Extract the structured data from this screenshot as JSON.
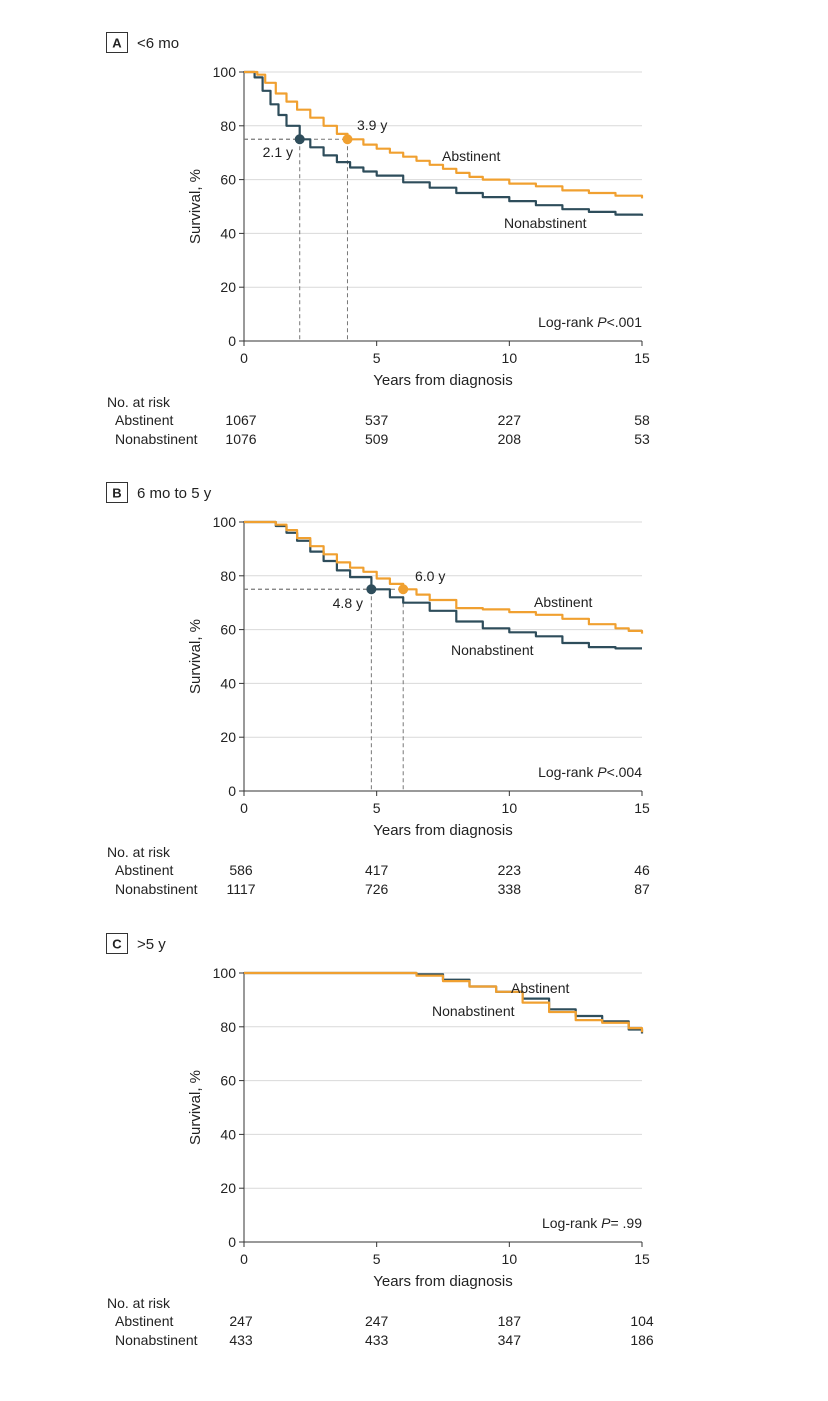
{
  "chart_data": [
    {
      "type": "line",
      "panel": "A",
      "title": "<6 mo",
      "xlabel": "Years from diagnosis",
      "ylabel": "Survival, %",
      "xlim": [
        0,
        15
      ],
      "ylim": [
        0,
        100
      ],
      "x_ticks": [
        "0",
        "5",
        "10",
        "15"
      ],
      "y_ticks": [
        "0",
        "20",
        "40",
        "60",
        "80",
        "100"
      ],
      "grid": true,
      "colors": {
        "Abstinent": "#F0A030",
        "Nonabstinent": "#2E4D5B"
      },
      "series": [
        {
          "name": "Abstinent",
          "x": [
            0,
            0.5,
            0.8,
            1.2,
            1.6,
            2,
            2.5,
            3,
            3.5,
            3.9,
            4.5,
            5,
            5.5,
            6,
            6.5,
            7,
            7.5,
            8,
            8.5,
            9,
            10,
            11,
            12,
            13,
            14,
            15
          ],
          "y": [
            100,
            99,
            96,
            92,
            89,
            86,
            83,
            80,
            77,
            75,
            73,
            71.5,
            70,
            68.5,
            67,
            65.5,
            64,
            62.5,
            61,
            60,
            58.5,
            57.5,
            56,
            55,
            54,
            53
          ]
        },
        {
          "name": "Nonabstinent",
          "x": [
            0,
            0.4,
            0.7,
            1,
            1.3,
            1.6,
            2.1,
            2.5,
            3,
            3.5,
            4,
            4.5,
            5,
            6,
            7,
            8,
            9,
            10,
            11,
            12,
            13,
            14,
            15
          ],
          "y": [
            100,
            98,
            93,
            88,
            84,
            80,
            75,
            72,
            69,
            66.5,
            64.5,
            63,
            61.5,
            59,
            57,
            55,
            53.5,
            52,
            50.5,
            49,
            48,
            47,
            46.5
          ]
        }
      ],
      "annotations": [
        {
          "label": "3.9 y",
          "x": 3.9,
          "y": 75,
          "series": "Abstinent"
        },
        {
          "label": "2.1 y",
          "x": 2.1,
          "y": 75,
          "series": "Nonabstinent"
        }
      ],
      "curve_labels": {
        "abstinent": "Abstinent",
        "nonabstinent": "Nonabstinent"
      },
      "logrank_prefix": "Log-rank ",
      "logrank_p": "P",
      "logrank_value": "<.001",
      "risk_table": {
        "header": "No. at risk",
        "rows": [
          {
            "label": "Abstinent",
            "values": [
              "1067",
              "537",
              "227",
              "58"
            ]
          },
          {
            "label": "Nonabstinent",
            "values": [
              "1076",
              "509",
              "208",
              "53"
            ]
          }
        ]
      }
    },
    {
      "type": "line",
      "panel": "B",
      "title": "6 mo to 5 y",
      "xlabel": "Years from diagnosis",
      "ylabel": "Survival, %",
      "xlim": [
        0,
        15
      ],
      "ylim": [
        0,
        100
      ],
      "x_ticks": [
        "0",
        "5",
        "10",
        "15"
      ],
      "y_ticks": [
        "0",
        "20",
        "40",
        "60",
        "80",
        "100"
      ],
      "grid": true,
      "colors": {
        "Abstinent": "#F0A030",
        "Nonabstinent": "#2E4D5B"
      },
      "series": [
        {
          "name": "Abstinent",
          "x": [
            0,
            0.8,
            1.2,
            1.6,
            2,
            2.5,
            3,
            3.5,
            4,
            4.5,
            5,
            5.5,
            6,
            6.5,
            7,
            8,
            9,
            10,
            11,
            12,
            13,
            14,
            14.5,
            15
          ],
          "y": [
            100,
            100,
            99,
            97,
            94,
            91,
            88,
            85,
            83,
            81.5,
            79,
            77,
            75,
            73,
            71,
            68,
            67.5,
            66.5,
            65.5,
            64,
            62,
            60.5,
            59.5,
            58.5
          ]
        },
        {
          "name": "Nonabstinent",
          "x": [
            0,
            0.8,
            1.2,
            1.6,
            2,
            2.5,
            3,
            3.5,
            4,
            4.8,
            5.5,
            6,
            7,
            8,
            9,
            10,
            11,
            12,
            13,
            14,
            15
          ],
          "y": [
            100,
            100,
            98.5,
            96,
            93,
            89,
            85.5,
            82,
            79.5,
            75,
            72,
            70,
            67,
            63,
            60.5,
            59,
            57.5,
            55,
            53.5,
            53,
            53
          ]
        }
      ],
      "annotations": [
        {
          "label": "6.0 y",
          "x": 6.0,
          "y": 75,
          "series": "Abstinent"
        },
        {
          "label": "4.8 y",
          "x": 4.8,
          "y": 75,
          "series": "Nonabstinent"
        }
      ],
      "curve_labels": {
        "abstinent": "Abstinent",
        "nonabstinent": "Nonabstinent"
      },
      "logrank_prefix": "Log-rank ",
      "logrank_p": "P",
      "logrank_value": "<.004",
      "risk_table": {
        "header": "No. at risk",
        "rows": [
          {
            "label": "Abstinent",
            "values": [
              "586",
              "417",
              "223",
              "46"
            ]
          },
          {
            "label": "Nonabstinent",
            "values": [
              "1117",
              "726",
              "338",
              "87"
            ]
          }
        ]
      }
    },
    {
      "type": "line",
      "panel": "C",
      "title": ">5 y",
      "xlabel": "Years from diagnosis",
      "ylabel": "Survival, %",
      "xlim": [
        0,
        15
      ],
      "ylim": [
        0,
        100
      ],
      "x_ticks": [
        "0",
        "5",
        "10",
        "15"
      ],
      "y_ticks": [
        "0",
        "20",
        "40",
        "60",
        "80",
        "100"
      ],
      "grid": true,
      "colors": {
        "Abstinent": "#F0A030",
        "Nonabstinent": "#2E4D5B"
      },
      "series": [
        {
          "name": "Abstinent",
          "x": [
            0,
            5.7,
            6.5,
            7.5,
            8.5,
            9.5,
            10.5,
            11.5,
            12.5,
            13.5,
            14.5,
            15
          ],
          "y": [
            100,
            100,
            99,
            97,
            95,
            93,
            89,
            85.5,
            82.5,
            81.5,
            79.5,
            78
          ]
        },
        {
          "name": "Nonabstinent",
          "x": [
            0,
            5.5,
            6.5,
            7.5,
            8.5,
            9.5,
            10.5,
            11.5,
            12.5,
            13.5,
            14.5,
            15
          ],
          "y": [
            100,
            100,
            99.5,
            97.5,
            95,
            93,
            90.5,
            86.5,
            84,
            82,
            79,
            77.5
          ]
        }
      ],
      "annotations": [],
      "curve_labels": {
        "abstinent": "Abstinent",
        "nonabstinent": "Nonabstinent"
      },
      "logrank_prefix": "Log-rank ",
      "logrank_p": "P",
      "logrank_value": "= .99",
      "risk_table": {
        "header": "No. at risk",
        "rows": [
          {
            "label": "Abstinent",
            "values": [
              "247",
              "247",
              "187",
              "104"
            ]
          },
          {
            "label": "Nonabstinent",
            "values": [
              "433",
              "433",
              "347",
              "186"
            ]
          }
        ]
      }
    }
  ]
}
